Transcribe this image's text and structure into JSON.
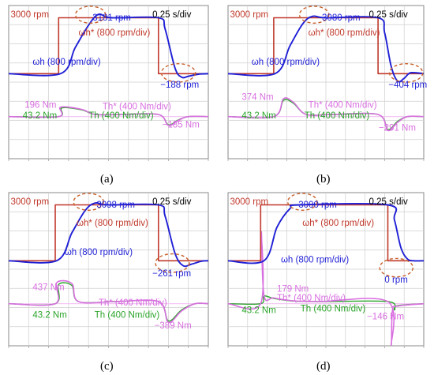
{
  "figure": {
    "panels": [
      {
        "label": "(a)",
        "annotations": {
          "setpoint": "3000 rpm",
          "peak": "3181 rpm",
          "timescale": "0.25 s/div",
          "wh_ref": "ωh* (800 rpm/div)",
          "wh": "ωh (800 rpm/div)",
          "undershoot": "−188 rpm",
          "torque_peak": "196 Nm",
          "torque_ss": "43.2 Nm",
          "th_ref": "Th* (400 Nm/div)",
          "th": "Th (400 Nm/div)",
          "torque_neg": "−185 Nm"
        }
      },
      {
        "label": "(b)",
        "annotations": {
          "setpoint": "3000 rpm",
          "peak": "3080 rpm",
          "timescale": "0.25 s/div",
          "wh_ref": "ωh* (800 rpm/div)",
          "wh": "ωh (800 rpm/div)",
          "undershoot": "−404 rpm",
          "torque_peak": "374 Nm",
          "torque_ss": "43.2 Nm",
          "th_ref": "Th* (400 Nm/div)",
          "th": "Th (400 Nm/div)",
          "torque_neg": "−291 Nm"
        }
      },
      {
        "label": "(c)",
        "annotations": {
          "setpoint": "3000 rpm",
          "peak": "3098 rpm",
          "timescale": "0.25 s/div",
          "wh_ref": "ωh* (800 rpm/div)",
          "wh": "ωh (800 rpm/div)",
          "undershoot": "−261 rpm",
          "torque_peak": "437 Nm",
          "torque_ss": "43.2 Nm",
          "th_ref": "Th* (400 Nm/div)",
          "th": "Th (400 Nm/div)",
          "torque_neg": "−389 Nm"
        }
      },
      {
        "label": "(d)",
        "annotations": {
          "setpoint": "3000 rpm",
          "peak": "3000 rpm",
          "timescale": "0.25 s/div",
          "wh_ref": "ωh* (800 rpm/div)",
          "wh": "ωh (800 rpm/div)",
          "undershoot": "0 rpm",
          "torque_peak": "179 Nm",
          "torque_ss": "43.2 Nm",
          "th_ref": "Th* (400 Nm/div)",
          "th": "Th (400 Nm/div)",
          "torque_neg": "−146 Nm"
        }
      }
    ]
  },
  "colors": {
    "speed_ref": "#c0392b",
    "speed": "#1f1fd6",
    "torque_ref": "#d86fe0",
    "torque": "#2aa52a",
    "marker": "#c8602a",
    "grid": "#cfcfcf",
    "text_black": "#000000"
  },
  "chart_data": [
    {
      "type": "line",
      "x_unit": "s",
      "x_div": 0.25,
      "series": [
        {
          "name": "ωh*",
          "unit": "rpm",
          "x": [
            0,
            0.75,
            0.75,
            2.25,
            2.25,
            3.0
          ],
          "y": [
            0,
            0,
            3000,
            3000,
            0,
            0
          ]
        },
        {
          "name": "ωh",
          "unit": "rpm",
          "x": [
            0,
            0.78,
            1.0,
            1.2,
            1.35,
            1.55,
            2.25,
            2.35,
            2.5,
            2.6,
            2.7,
            2.85,
            3.0
          ],
          "y": [
            0,
            0,
            1400,
            2600,
            3181,
            3000,
            3000,
            2400,
            300,
            -188,
            -140,
            -30,
            0
          ]
        },
        {
          "name": "Th*",
          "unit": "Nm",
          "x": [
            0,
            0.75,
            0.78,
            1.1,
            1.3,
            1.7,
            2.25,
            2.4,
            2.55,
            2.7,
            3.0
          ],
          "y": [
            0,
            0,
            196,
            150,
            43.2,
            43.2,
            43.2,
            -185,
            -80,
            0,
            0
          ]
        },
        {
          "name": "Th",
          "unit": "Nm",
          "x": [
            0,
            0.75,
            0.8,
            1.1,
            1.3,
            1.7,
            2.25,
            2.4,
            2.55,
            2.7,
            3.0
          ],
          "y": [
            0,
            0,
            180,
            140,
            43.2,
            43.2,
            43.2,
            -170,
            -70,
            0,
            0
          ]
        }
      ]
    },
    {
      "type": "line",
      "x_unit": "s",
      "x_div": 0.25,
      "series": [
        {
          "name": "ωh*",
          "unit": "rpm",
          "x": [
            0,
            0.7,
            0.7,
            2.3,
            2.3,
            3.0
          ],
          "y": [
            0,
            0,
            3000,
            3000,
            0,
            0
          ]
        },
        {
          "name": "ωh",
          "unit": "rpm",
          "x": [
            0,
            0.72,
            0.95,
            1.15,
            1.3,
            1.5,
            2.3,
            2.4,
            2.5,
            2.6,
            2.7,
            2.8,
            3.0
          ],
          "y": [
            0,
            0,
            1500,
            2700,
            3080,
            3000,
            3000,
            2200,
            400,
            -404,
            -250,
            50,
            0
          ]
        },
        {
          "name": "Th*",
          "unit": "Nm",
          "x": [
            0,
            0.7,
            0.85,
            1.0,
            1.2,
            1.6,
            2.3,
            2.45,
            2.6,
            2.75,
            3.0
          ],
          "y": [
            0,
            0,
            374,
            300,
            43.2,
            43.2,
            43.2,
            -291,
            -120,
            0,
            0
          ]
        },
        {
          "name": "Th",
          "unit": "Nm",
          "x": [
            0,
            0.7,
            0.85,
            1.0,
            1.2,
            1.6,
            2.3,
            2.45,
            2.6,
            2.75,
            3.0
          ],
          "y": [
            0,
            0,
            340,
            280,
            43.2,
            43.2,
            43.2,
            -270,
            -100,
            0,
            0
          ]
        }
      ]
    },
    {
      "type": "line",
      "x_unit": "s",
      "x_div": 0.25,
      "series": [
        {
          "name": "ωh*",
          "unit": "rpm",
          "x": [
            0,
            0.7,
            0.7,
            2.25,
            2.25,
            3.0
          ],
          "y": [
            0,
            0,
            3000,
            3000,
            0,
            0
          ]
        },
        {
          "name": "ωh",
          "unit": "rpm",
          "x": [
            0,
            0.72,
            0.95,
            1.15,
            1.3,
            1.5,
            2.25,
            2.35,
            2.5,
            2.62,
            2.75,
            2.9,
            3.0
          ],
          "y": [
            0,
            0,
            1500,
            2700,
            3098,
            3000,
            3000,
            2400,
            400,
            -261,
            -180,
            -20,
            0
          ]
        },
        {
          "name": "Th*",
          "unit": "Nm",
          "x": [
            0,
            0.7,
            0.72,
            0.95,
            1.05,
            1.6,
            2.25,
            2.4,
            2.6,
            2.8,
            3.0
          ],
          "y": [
            0,
            0,
            437,
            420,
            43.2,
            43.2,
            43.2,
            -389,
            -150,
            0,
            0
          ]
        },
        {
          "name": "Th",
          "unit": "Nm",
          "x": [
            0,
            0.7,
            0.75,
            0.95,
            1.05,
            1.6,
            2.25,
            2.4,
            2.6,
            2.8,
            3.0
          ],
          "y": [
            0,
            0,
            400,
            380,
            43.2,
            43.2,
            43.2,
            -360,
            -130,
            0,
            0
          ]
        }
      ]
    },
    {
      "type": "line",
      "x_unit": "s",
      "x_div": 0.25,
      "series": [
        {
          "name": "ωh*",
          "unit": "rpm",
          "x": [
            0,
            0.5,
            0.5,
            2.45,
            2.45,
            3.0
          ],
          "y": [
            0,
            0,
            3000,
            3000,
            0,
            0
          ]
        },
        {
          "name": "ωh",
          "unit": "rpm",
          "x": [
            0,
            0.55,
            0.75,
            0.95,
            1.1,
            2.45,
            2.55,
            2.65,
            2.75,
            2.85,
            3.0
          ],
          "y": [
            0,
            0,
            1800,
            2800,
            3000,
            3000,
            2200,
            700,
            100,
            0,
            0
          ]
        },
        {
          "name": "Th*",
          "unit": "Nm",
          "x": [
            0,
            0.5,
            0.51,
            0.55,
            0.7,
            1.0,
            1.4,
            2.45,
            2.5,
            2.52,
            2.6,
            3.0
          ],
          "y": [
            0,
            0,
            1500,
            179,
            120,
            60,
            43.2,
            43.2,
            -1500,
            -146,
            -50,
            0
          ]
        },
        {
          "name": "Th",
          "unit": "Nm",
          "x": [
            0,
            0.5,
            0.55,
            0.7,
            1.0,
            1.4,
            2.45,
            2.55,
            2.6,
            3.0
          ],
          "y": [
            0,
            0,
            160,
            110,
            55,
            43.2,
            43.2,
            -130,
            -40,
            0
          ]
        }
      ]
    }
  ]
}
